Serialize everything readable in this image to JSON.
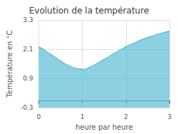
{
  "chart_data": {
    "type": "area",
    "title": "Evolution de la température",
    "xlabel": "heure par heure",
    "ylabel": "Température en °C",
    "x": [
      0,
      0.1,
      0.2,
      0.3,
      0.4,
      0.5,
      0.6,
      0.7,
      0.8,
      0.9,
      1.0,
      1.05,
      1.1,
      1.2,
      1.3,
      1.4,
      1.5,
      1.6,
      1.7,
      1.8,
      1.9,
      2.0,
      2.1,
      2.2,
      2.3,
      2.4,
      2.5,
      2.6,
      2.7,
      2.8,
      2.9,
      3.0
    ],
    "values": [
      2.2,
      2.1,
      1.98,
      1.86,
      1.74,
      1.62,
      1.5,
      1.42,
      1.34,
      1.3,
      1.28,
      1.27,
      1.3,
      1.38,
      1.48,
      1.58,
      1.68,
      1.78,
      1.9,
      2.0,
      2.1,
      2.2,
      2.28,
      2.36,
      2.45,
      2.52,
      2.58,
      2.64,
      2.7,
      2.75,
      2.8,
      2.85
    ],
    "color": "#5bbcd6",
    "xlim": [
      0,
      3
    ],
    "ylim": [
      -0.3,
      3.3
    ],
    "xticks": [
      0,
      1,
      2,
      3
    ],
    "yticks": [
      -0.3,
      0.9,
      2.1,
      3.3
    ],
    "grid": true
  }
}
